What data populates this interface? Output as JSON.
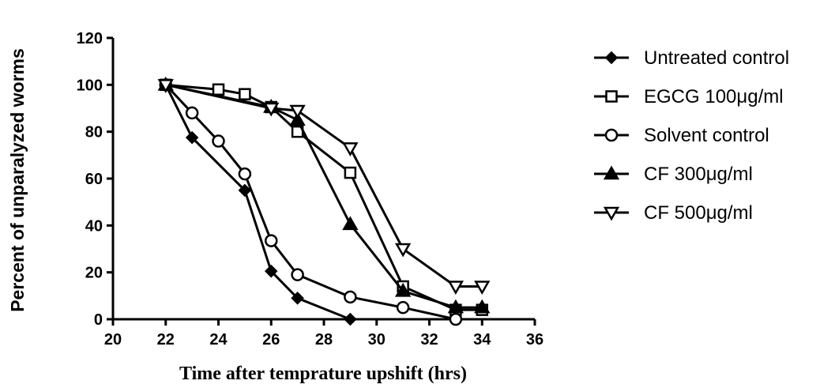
{
  "chart_data": {
    "type": "line",
    "title": "",
    "xlabel": "Time after temprature upshift (hrs)",
    "ylabel": "Percent of unparalyzed worms",
    "xlim": [
      20,
      36
    ],
    "ylim": [
      0,
      120
    ],
    "xticks": [
      20,
      22,
      24,
      26,
      28,
      30,
      32,
      34,
      36
    ],
    "yticks": [
      0,
      20,
      40,
      60,
      80,
      100,
      120
    ],
    "grid": false,
    "legend_position": "right",
    "series": [
      {
        "name": "Untreated control",
        "marker": "diamond-filled",
        "x": [
          22,
          23,
          25,
          26,
          27,
          29
        ],
        "y": [
          100,
          77.5,
          55,
          20.5,
          9,
          0
        ]
      },
      {
        "name": "EGCG 100μg/ml",
        "marker": "square-open",
        "x": [
          22,
          24,
          25,
          26,
          27,
          29,
          31,
          33,
          34
        ],
        "y": [
          100,
          98,
          96,
          90.5,
          80,
          62.5,
          14,
          4,
          4
        ]
      },
      {
        "name": "Solvent control",
        "marker": "circle-open",
        "x": [
          22,
          23,
          24,
          25,
          26,
          27,
          29,
          31,
          33
        ],
        "y": [
          100,
          88,
          76,
          62,
          33.5,
          19,
          9.5,
          5,
          0
        ]
      },
      {
        "name": "CF 300μg/ml",
        "marker": "triangle-up-filled",
        "x": [
          22,
          26,
          27,
          29,
          31,
          33,
          34
        ],
        "y": [
          100,
          90.5,
          85,
          40.5,
          12,
          5,
          5
        ]
      },
      {
        "name": "CF 500μg/ml",
        "marker": "triangle-down-open",
        "x": [
          22,
          26,
          27,
          29,
          31,
          33,
          34
        ],
        "y": [
          100,
          90,
          89,
          73,
          30,
          14,
          14
        ]
      }
    ]
  },
  "colors": {
    "ink": "#000000",
    "background": "#ffffff"
  }
}
